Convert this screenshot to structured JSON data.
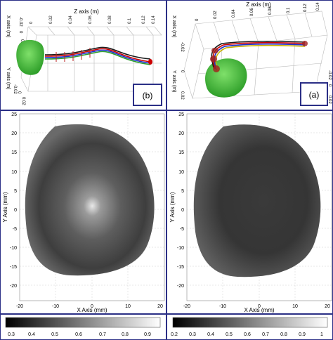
{
  "panels_3d": {
    "left": {
      "label": "(b)",
      "z_axis_title": "Z axis (m)",
      "x_axis_title": "X axis (m)",
      "y_axis_title": "Y axis (m)",
      "z_ticks": [
        "0",
        "0.02",
        "0.04",
        "0.06",
        "0.08",
        "0.1",
        "0.12",
        "0.14"
      ],
      "x_ticks": [
        "-0.02",
        "0",
        "0.02"
      ],
      "y_ticks": [
        "-0.02",
        "0",
        "0.02"
      ]
    },
    "right": {
      "label": "(a)",
      "z_axis_title": "Z axis (m)",
      "x_axis_title": "X axis (m)",
      "y_axis_title": "Y axis (m)",
      "z_ticks": [
        "0",
        "0.02",
        "0.04",
        "0.06",
        "0.08",
        "0.1",
        "0.12",
        "0.14"
      ],
      "x_ticks": [
        "-0.02",
        "0",
        "0.02"
      ],
      "y_ticks": [
        "-0.02",
        "0",
        "0.02"
      ]
    }
  },
  "chart_data": [
    {
      "type": "heatmap",
      "xlabel": "X Axis (mm)",
      "ylabel": "Y Axis (mm)",
      "xlim": [
        -20,
        20
      ],
      "ylim": [
        -20,
        25
      ],
      "x_ticks": [
        "-20",
        "-10",
        "0",
        "10",
        "20"
      ],
      "y_ticks": [
        "25",
        "20",
        "15",
        "10",
        "5",
        "0",
        "-5",
        "-10",
        "-15",
        "-20"
      ],
      "grid": true
    },
    {
      "type": "heatmap",
      "xlabel": "X Axis (mm)",
      "ylabel": "Y Axis (mm)",
      "xlim": [
        -20,
        20
      ],
      "ylim": [
        -20,
        25
      ],
      "x_ticks": [
        "-20",
        "-10",
        "0",
        "10",
        "20"
      ],
      "y_ticks": [
        "25",
        "20",
        "15",
        "10",
        "5",
        "0",
        "-5",
        "-10",
        "-15",
        "-20"
      ],
      "grid": true
    }
  ],
  "colorbars": [
    {
      "ticks": [
        "0.3",
        "0.4",
        "0.5",
        "0.6",
        "0.7",
        "0.8",
        "0.9"
      ]
    },
    {
      "ticks": [
        "0.2",
        "0.3",
        "0.4",
        "0.5",
        "0.6",
        "0.7",
        "0.8",
        "0.9",
        "1"
      ]
    }
  ]
}
